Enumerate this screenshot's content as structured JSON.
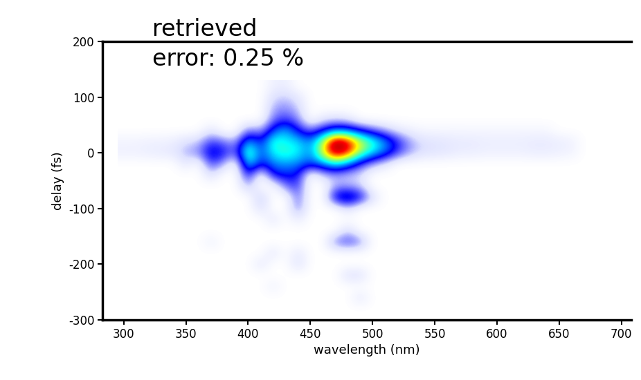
{
  "chart_data": {
    "type": "heatmap",
    "title": "retrieved",
    "subtitle": "error: 0.25 %",
    "x_label": "wavelength (nm)",
    "y_label": "delay (fs)",
    "xlim": [
      283,
      708
    ],
    "ylim": [
      -300,
      200
    ],
    "xticks": [
      300,
      350,
      400,
      450,
      500,
      550,
      600,
      650,
      700
    ],
    "yticks": [
      -300,
      -200,
      -100,
      0,
      100,
      200
    ],
    "x": [
      300,
      310,
      320,
      330,
      340,
      350,
      360,
      370,
      380,
      390,
      400,
      410,
      420,
      430,
      440,
      450,
      460,
      470,
      480,
      490,
      500,
      510,
      520,
      530,
      540,
      550,
      560,
      570,
      580,
      590,
      600,
      610,
      620,
      630,
      640,
      650,
      660,
      670,
      680,
      690,
      700
    ],
    "y": [
      -280,
      -260,
      -240,
      -220,
      -200,
      -180,
      -160,
      -140,
      -120,
      -100,
      -80,
      -60,
      -40,
      -20,
      0,
      20,
      40,
      60,
      80,
      100,
      120
    ],
    "cells": [
      [
        0,
        0,
        0,
        0,
        0,
        0,
        0,
        0,
        0,
        0,
        0,
        0,
        0,
        0,
        0,
        0,
        0,
        0,
        0,
        0,
        0,
        0,
        0,
        0,
        0,
        0,
        0,
        0,
        0,
        0,
        0,
        0,
        0,
        0,
        0,
        0,
        0,
        0,
        0,
        0,
        0
      ],
      [
        0,
        0,
        0,
        0,
        0,
        0,
        0,
        0,
        0,
        0,
        0,
        0,
        0,
        0,
        0,
        0,
        0,
        0,
        0,
        8,
        0,
        0,
        0,
        0,
        0,
        0,
        0,
        0,
        0,
        0,
        0,
        0,
        0,
        0,
        0,
        0,
        0,
        0,
        0,
        0,
        0
      ],
      [
        0,
        0,
        0,
        0,
        0,
        0,
        0,
        0,
        0,
        0,
        0,
        0,
        5,
        0,
        0,
        0,
        0,
        0,
        0,
        0,
        0,
        0,
        0,
        0,
        0,
        0,
        0,
        0,
        0,
        0,
        0,
        0,
        0,
        0,
        0,
        0,
        0,
        0,
        0,
        0,
        0
      ],
      [
        0,
        0,
        0,
        0,
        0,
        0,
        0,
        0,
        0,
        0,
        0,
        0,
        0,
        0,
        0,
        0,
        0,
        0,
        10,
        10,
        0,
        0,
        0,
        0,
        0,
        0,
        0,
        0,
        0,
        0,
        0,
        0,
        0,
        0,
        0,
        0,
        0,
        0,
        0,
        0,
        0
      ],
      [
        0,
        0,
        0,
        0,
        0,
        0,
        0,
        0,
        0,
        0,
        0,
        8,
        0,
        0,
        10,
        0,
        0,
        0,
        0,
        0,
        0,
        0,
        0,
        0,
        0,
        0,
        0,
        0,
        0,
        0,
        0,
        0,
        0,
        0,
        0,
        0,
        0,
        0,
        0,
        0,
        0
      ],
      [
        0,
        0,
        0,
        0,
        0,
        0,
        0,
        0,
        0,
        0,
        0,
        0,
        8,
        0,
        8,
        0,
        0,
        0,
        0,
        0,
        0,
        0,
        0,
        0,
        0,
        0,
        0,
        0,
        0,
        0,
        0,
        0,
        0,
        0,
        0,
        0,
        0,
        0,
        0,
        0,
        0
      ],
      [
        0,
        0,
        0,
        0,
        0,
        0,
        0,
        5,
        0,
        0,
        0,
        0,
        0,
        0,
        0,
        0,
        0,
        20,
        25,
        20,
        0,
        0,
        0,
        0,
        0,
        0,
        0,
        0,
        0,
        0,
        0,
        0,
        0,
        0,
        0,
        0,
        0,
        0,
        0,
        0,
        0
      ],
      [
        0,
        0,
        0,
        0,
        0,
        0,
        0,
        0,
        0,
        0,
        0,
        0,
        0,
        0,
        0,
        0,
        0,
        0,
        12,
        0,
        0,
        0,
        0,
        0,
        0,
        0,
        0,
        0,
        0,
        0,
        0,
        0,
        0,
        0,
        0,
        0,
        0,
        0,
        0,
        0,
        0
      ],
      [
        0,
        0,
        0,
        0,
        0,
        0,
        0,
        0,
        0,
        0,
        0,
        0,
        8,
        0,
        6,
        0,
        0,
        0,
        0,
        0,
        0,
        0,
        0,
        0,
        0,
        0,
        0,
        0,
        0,
        0,
        0,
        0,
        0,
        0,
        0,
        0,
        0,
        0,
        0,
        0,
        0
      ],
      [
        0,
        0,
        0,
        0,
        0,
        0,
        0,
        0,
        0,
        0,
        0,
        10,
        0,
        0,
        20,
        0,
        0,
        0,
        10,
        0,
        0,
        0,
        0,
        0,
        0,
        0,
        0,
        0,
        0,
        0,
        0,
        0,
        0,
        0,
        0,
        0,
        0,
        0,
        0,
        0,
        0
      ],
      [
        0,
        0,
        0,
        0,
        0,
        0,
        0,
        0,
        0,
        0,
        0,
        15,
        0,
        0,
        22,
        0,
        0,
        35,
        42,
        32,
        10,
        0,
        0,
        0,
        0,
        0,
        0,
        0,
        0,
        0,
        0,
        0,
        0,
        0,
        0,
        0,
        0,
        0,
        0,
        0,
        0
      ],
      [
        0,
        0,
        0,
        0,
        0,
        0,
        0,
        0,
        0,
        0,
        15,
        0,
        0,
        20,
        25,
        0,
        0,
        15,
        15,
        12,
        0,
        0,
        0,
        0,
        0,
        0,
        0,
        0,
        0,
        0,
        0,
        0,
        0,
        0,
        0,
        0,
        0,
        0,
        0,
        0,
        0
      ],
      [
        0,
        0,
        0,
        0,
        0,
        0,
        0,
        10,
        0,
        0,
        30,
        0,
        30,
        32,
        30,
        0,
        12,
        15,
        12,
        10,
        0,
        0,
        0,
        0,
        0,
        0,
        0,
        0,
        0,
        0,
        0,
        0,
        0,
        0,
        0,
        0,
        0,
        0,
        0,
        0,
        0
      ],
      [
        0,
        0,
        0,
        0,
        0,
        8,
        0,
        25,
        15,
        0,
        50,
        30,
        40,
        42,
        40,
        35,
        40,
        50,
        40,
        25,
        15,
        8,
        0,
        0,
        0,
        0,
        0,
        0,
        0,
        0,
        0,
        0,
        0,
        0,
        0,
        0,
        0,
        0,
        0,
        0,
        0
      ],
      [
        5,
        5,
        6,
        7,
        8,
        15,
        18,
        35,
        30,
        20,
        62,
        35,
        50,
        55,
        50,
        40,
        70,
        95,
        85,
        62,
        48,
        38,
        25,
        15,
        10,
        9,
        8,
        6,
        6,
        5,
        5,
        5,
        5,
        6,
        6,
        5,
        4,
        0,
        0,
        0,
        0
      ],
      [
        4,
        4,
        5,
        5,
        6,
        10,
        12,
        25,
        20,
        15,
        45,
        30,
        55,
        50,
        48,
        40,
        65,
        100,
        90,
        68,
        55,
        42,
        28,
        16,
        10,
        9,
        8,
        7,
        7,
        6,
        6,
        6,
        6,
        7,
        7,
        6,
        5,
        0,
        0,
        0,
        0
      ],
      [
        0,
        0,
        0,
        0,
        0,
        0,
        0,
        8,
        0,
        0,
        20,
        15,
        35,
        45,
        30,
        20,
        30,
        40,
        38,
        30,
        22,
        15,
        8,
        5,
        3,
        3,
        3,
        3,
        3,
        3,
        3,
        3,
        3,
        3,
        3,
        0,
        0,
        0,
        0,
        0,
        0
      ],
      [
        0,
        0,
        0,
        0,
        0,
        0,
        0,
        0,
        0,
        0,
        0,
        0,
        20,
        25,
        18,
        0,
        8,
        10,
        8,
        0,
        0,
        0,
        0,
        0,
        0,
        0,
        0,
        0,
        0,
        0,
        0,
        0,
        0,
        0,
        0,
        0,
        0,
        0,
        0,
        0,
        0
      ],
      [
        0,
        0,
        0,
        0,
        0,
        0,
        0,
        0,
        0,
        0,
        0,
        0,
        15,
        18,
        12,
        0,
        0,
        0,
        0,
        0,
        0,
        0,
        0,
        0,
        0,
        0,
        0,
        0,
        0,
        0,
        0,
        0,
        0,
        0,
        0,
        0,
        0,
        0,
        0,
        0,
        0
      ],
      [
        0,
        0,
        0,
        0,
        0,
        0,
        0,
        0,
        0,
        0,
        0,
        0,
        10,
        12,
        8,
        0,
        0,
        0,
        0,
        0,
        0,
        0,
        0,
        0,
        0,
        0,
        0,
        0,
        0,
        0,
        0,
        0,
        0,
        0,
        0,
        0,
        0,
        0,
        0,
        0,
        0
      ],
      [
        0,
        0,
        0,
        0,
        0,
        0,
        0,
        0,
        0,
        0,
        0,
        0,
        5,
        6,
        0,
        0,
        0,
        0,
        0,
        0,
        0,
        0,
        0,
        0,
        0,
        0,
        0,
        0,
        0,
        0,
        0,
        0,
        0,
        0,
        0,
        0,
        0,
        0,
        0,
        0,
        0
      ]
    ]
  }
}
